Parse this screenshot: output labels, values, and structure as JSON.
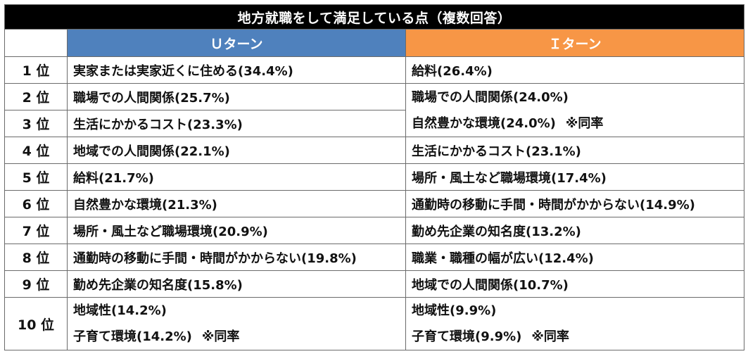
{
  "title": "地方就職をして満足している点（複数回答）",
  "headers": {
    "u_turn": "Ｕターン",
    "i_turn": "Ｉターン"
  },
  "rows": [
    {
      "rank": "1 位",
      "u": "実家または実家近くに住める(34.4%)",
      "i": "給料(26.4%)"
    },
    {
      "rank": "2 位",
      "u": "職場での人間関係(25.7%)",
      "i": "職場での人間関係(24.0%)"
    },
    {
      "rank": "3 位",
      "u": "生活にかかるコスト(23.3%)",
      "i": "自然豊かな環境(24.0%)",
      "i_note": "※同率"
    },
    {
      "rank": "4 位",
      "u": "地域での人間関係(22.1%)",
      "i": "生活にかかるコスト(23.1%)"
    },
    {
      "rank": "5 位",
      "u": "給料(21.7%)",
      "i": "場所・風土など職場環境(17.4%)"
    },
    {
      "rank": "6 位",
      "u": "自然豊かな環境(21.3%)",
      "i": "通勤時の移動に手間・時間がかからない(14.9%)"
    },
    {
      "rank": "7 位",
      "u": "場所・風土など職場環境(20.9%)",
      "i": "勤め先企業の知名度(13.2%)"
    },
    {
      "rank": "8 位",
      "u": "通勤時の移動に手間・時間がかからない(19.8%)",
      "i": "職業・職種の幅が広い(12.4%)"
    },
    {
      "rank": "9 位",
      "u": "勤め先企業の知名度(15.8%)",
      "i": "地域での人間関係(10.7%)"
    },
    {
      "rank": "10 位",
      "u": [
        "地域性(14.2%)",
        "子育て環境(14.2%)"
      ],
      "u_note": "※同率",
      "i": [
        "地域性(9.9%)",
        "子育て環境(9.9%)"
      ],
      "i_note": "※同率"
    }
  ]
}
